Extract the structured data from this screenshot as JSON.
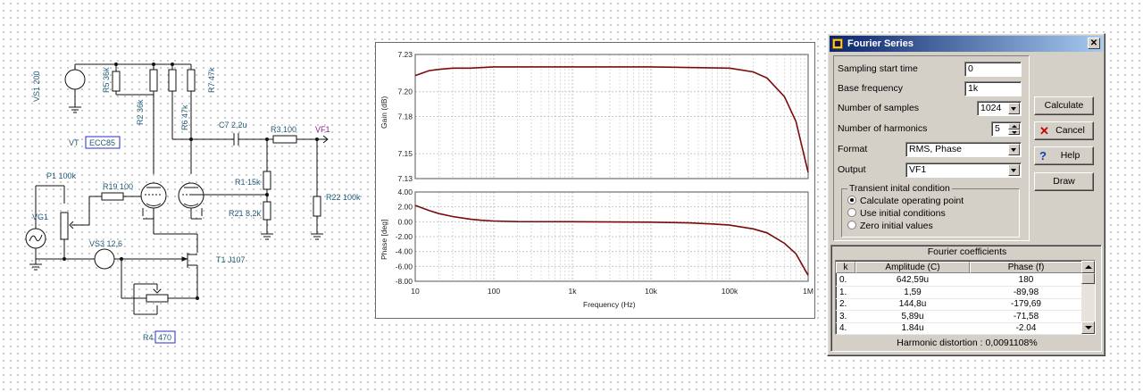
{
  "schematic": {
    "labels": {
      "vs1": "VS1 200",
      "r5": "R5 36k",
      "r2": "R2 36k",
      "r6": "R6 47k",
      "r7": "R7 47k",
      "tube": "ECC85",
      "tube_prefix": "VT",
      "c7": "C7 2,2u",
      "r3": "R3 100",
      "vf1": "VF1",
      "p1": "P1 100k",
      "r19": "R19 100",
      "r1": "R1 15k",
      "r22": "R22 100k",
      "r21": "R21 8,2k",
      "vg1": "VG1",
      "vs3": "VS3 12,6",
      "t1": "T1 J107",
      "r4": "R4",
      "r4_value": "470"
    }
  },
  "plot": {
    "gain_axis_label": "Gain (dB)",
    "phase_axis_label": "Phase [deg]",
    "x_axis_label": "Frequency (Hz)",
    "curve_color": "#7a0a0a"
  },
  "chart_data": [
    {
      "type": "line",
      "ylabel": "Gain (dB)",
      "xscale": "log",
      "xlim": [
        10,
        1000000
      ],
      "ylim": [
        7.13,
        7.23
      ],
      "yticks": [
        "7.23",
        "7.20",
        "7.18",
        "7.15",
        "7.13"
      ],
      "xticks": [
        "10",
        "100",
        "1k",
        "10k",
        "100k",
        "1M"
      ],
      "x": [
        10,
        15,
        20,
        30,
        50,
        100,
        1000,
        10000,
        100000,
        200000,
        300000,
        500000,
        700000,
        1000000
      ],
      "y": [
        7.213,
        7.217,
        7.218,
        7.219,
        7.219,
        7.22,
        7.22,
        7.22,
        7.219,
        7.216,
        7.211,
        7.196,
        7.176,
        7.135
      ]
    },
    {
      "type": "line",
      "ylabel": "Phase [deg]",
      "xlabel": "Frequency (Hz)",
      "xscale": "log",
      "xlim": [
        10,
        1000000
      ],
      "ylim": [
        -8.0,
        4.0
      ],
      "yticks": [
        "4.00",
        "2.00",
        "0.00",
        "-2.00",
        "-4.00",
        "-6.00",
        "-8.00"
      ],
      "xticks": [
        "10",
        "100",
        "1k",
        "10k",
        "100k",
        "1M"
      ],
      "x": [
        10,
        15,
        20,
        30,
        50,
        70,
        100,
        200,
        1000,
        10000,
        30000,
        60000,
        100000,
        200000,
        300000,
        500000,
        700000,
        1000000
      ],
      "y": [
        2.2,
        1.5,
        1.1,
        0.7,
        0.35,
        0.2,
        0.1,
        0.02,
        0.0,
        -0.05,
        -0.15,
        -0.3,
        -0.45,
        -0.95,
        -1.5,
        -2.9,
        -4.3,
        -7.2
      ]
    }
  ],
  "dialog": {
    "title": "Fourier Series",
    "close": "✕",
    "fields": {
      "sampling_start_label": "Sampling start time",
      "sampling_start_value": "0",
      "base_freq_label": "Base frequency",
      "base_freq_value": "1k",
      "num_samples_label": "Number of samples",
      "num_samples_value": "1024",
      "num_harmonics_label": "Number of harmonics",
      "num_harmonics_value": "5",
      "format_label": "Format",
      "format_value": "RMS, Phase",
      "output_label": "Output",
      "output_value": "VF1"
    },
    "transient": {
      "legend": "Transient inital condition",
      "opt1": "Calculate operating point",
      "opt2": "Use initial conditions",
      "opt3": "Zero initial values"
    },
    "buttons": {
      "calculate": "Calculate",
      "cancel": "Cancel",
      "help": "Help",
      "draw": "Draw"
    },
    "coefficients": {
      "title": "Fourier coefficients",
      "headers": [
        "k",
        "Amplitude (C)",
        "Phase (f)"
      ],
      "rows": [
        [
          "0.",
          "642,59u",
          "180"
        ],
        [
          "1.",
          "1,59",
          "-89,98"
        ],
        [
          "2.",
          "144,8u",
          "-179,69"
        ],
        [
          "3.",
          "5,89u",
          "-71,58"
        ],
        [
          "4.",
          "1.84u",
          "-2.04"
        ]
      ],
      "harmonic_label": "Harmonic distortion :",
      "harmonic_value": "0,0091108%"
    }
  }
}
